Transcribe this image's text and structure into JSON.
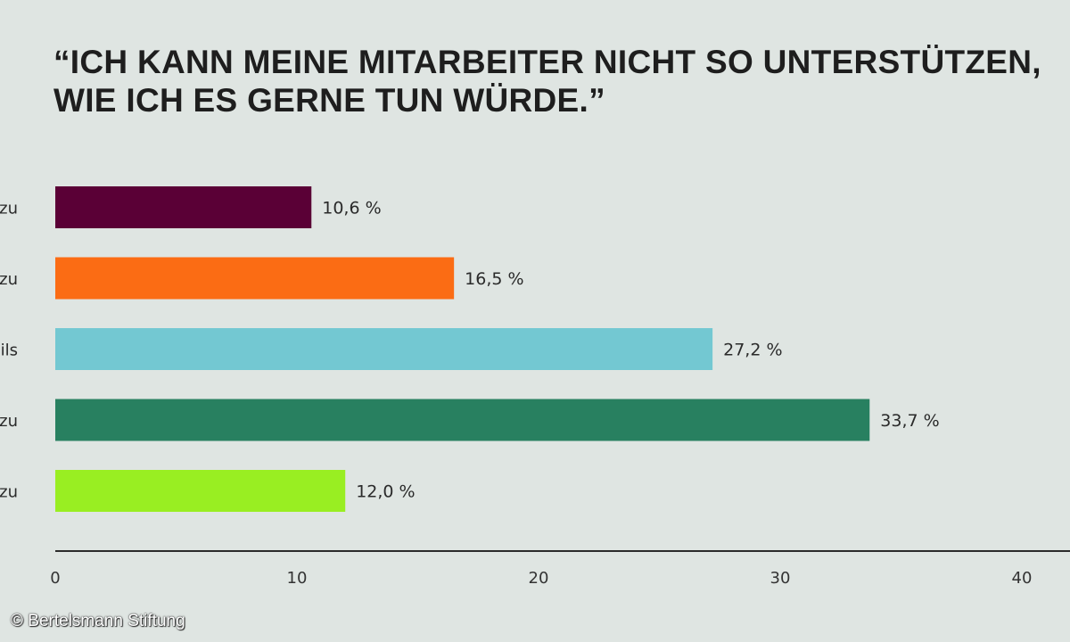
{
  "chart_data": {
    "type": "bar",
    "orientation": "horizontal",
    "title_lines": [
      "“ICH KANN MEINE MITARBEITER NICHT SO UNTERSTÜTZEN,",
      "WIE ICH ES GERNE TUN WÜRDE.”"
    ],
    "categories": [
      "zu",
      "zu",
      "ils",
      "zu",
      "zu"
    ],
    "values": [
      10.6,
      16.5,
      27.2,
      33.7,
      12.0
    ],
    "value_labels": [
      "10,6 %",
      "16,5 %",
      "27,2 %",
      "33,7 %",
      "12,0 %"
    ],
    "colors": [
      "#5a0036",
      "#fb6c14",
      "#73c8d2",
      "#288060",
      "#99ee22"
    ],
    "xlim": [
      0,
      40
    ],
    "x_ticks": [
      0,
      10,
      20,
      30,
      40
    ],
    "x_tick_labels": [
      "0",
      "10",
      "20",
      "30",
      "40"
    ],
    "grid": false,
    "legend": "none"
  },
  "footer": {
    "copyright": "© Bertelsmann Stiftung"
  }
}
